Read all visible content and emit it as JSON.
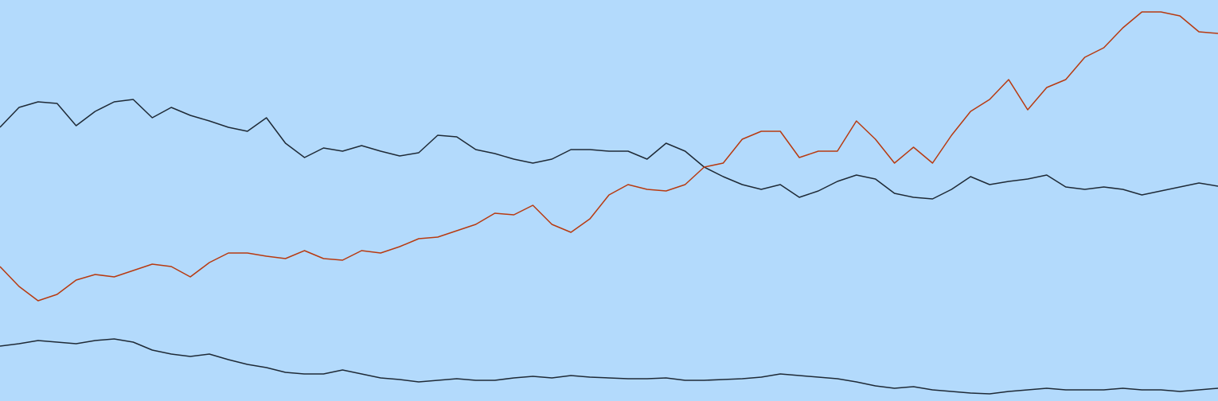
{
  "chart_data": {
    "type": "line",
    "ylim": [
      0,
      504
    ],
    "background": "#b3dafc",
    "series": [
      {
        "color": "#1f2a36",
        "values": [
          344,
          369,
          376,
          374,
          346,
          364,
          376,
          379,
          356,
          369,
          359,
          352,
          344,
          339,
          356,
          324,
          306,
          318,
          314,
          321,
          314,
          308,
          312,
          334,
          332,
          316,
          311,
          304,
          299,
          304,
          316,
          316,
          314,
          314,
          304,
          324,
          314,
          294,
          282,
          272,
          266,
          272,
          256,
          264,
          276,
          284,
          279,
          261,
          256,
          254,
          266,
          282,
          272,
          276,
          279,
          284,
          269,
          266,
          269,
          266,
          259,
          264,
          269,
          274,
          270
        ]
      },
      {
        "color": "#b83a10",
        "values": [
          169,
          144,
          126,
          134,
          152,
          159,
          156,
          164,
          172,
          169,
          156,
          174,
          186,
          186,
          182,
          179,
          189,
          179,
          177,
          189,
          186,
          194,
          204,
          206,
          214,
          222,
          236,
          234,
          246,
          222,
          212,
          229,
          259,
          272,
          266,
          264,
          272,
          294,
          299,
          329,
          339,
          339,
          306,
          314,
          314,
          352,
          329,
          299,
          319,
          299,
          334,
          364,
          379,
          404,
          366,
          394,
          404,
          432,
          444,
          469,
          489,
          489,
          484,
          464,
          462
        ]
      },
      {
        "color": "#1f2a36",
        "values": [
          69,
          72,
          76,
          74,
          72,
          76,
          78,
          74,
          64,
          59,
          56,
          59,
          52,
          46,
          42,
          36,
          34,
          34,
          39,
          34,
          29,
          27,
          24,
          26,
          28,
          26,
          26,
          29,
          31,
          29,
          32,
          30,
          29,
          28,
          28,
          29,
          26,
          26,
          27,
          28,
          30,
          34,
          32,
          30,
          28,
          24,
          19,
          16,
          18,
          14,
          12,
          10,
          9,
          12,
          14,
          16,
          14,
          14,
          14,
          16,
          14,
          14,
          12,
          14,
          16
        ]
      }
    ]
  }
}
